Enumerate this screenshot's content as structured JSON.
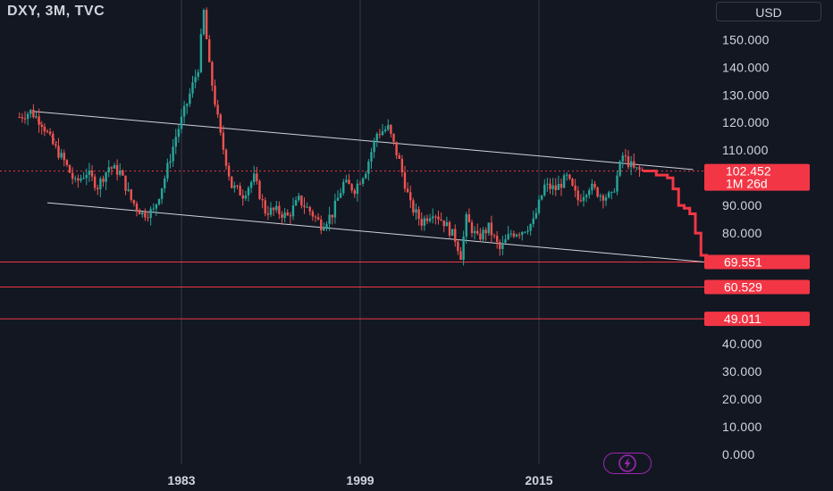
{
  "header": {
    "symbol": "DXY, 3M, TVC",
    "currency": "USD"
  },
  "colors": {
    "background": "#131722",
    "up": "#26a69a",
    "down": "#ef5350",
    "grid": "#363a45",
    "trendline": "#d1d4dc",
    "price_tag": "#f23645",
    "text": "#d1d4dc",
    "lightning": "#9c27b0"
  },
  "icons": {
    "speed_button": "lightning-bolt-icon"
  },
  "chart_data": {
    "type": "candlestick",
    "title": "DXY, 3M, TVC",
    "currency": "USD",
    "y_ticks": [
      "150.000",
      "140.000",
      "130.000",
      "120.000",
      "110.000",
      "90.000",
      "80.000",
      "40.000",
      "30.000",
      "20.000",
      "10.000",
      "0.000"
    ],
    "x_ticks": [
      "1983",
      "1999",
      "2015"
    ],
    "ylim": [
      0,
      162
    ],
    "xlim": [
      1968.2,
      2036
    ],
    "grid": true,
    "last_price": {
      "value": "102.452",
      "countdown": "1M 26d"
    },
    "horizontal_levels": [
      "69.551",
      "60.529",
      "49.011"
    ],
    "channel": {
      "upper": [
        [
          1969.8,
          124
        ],
        [
          2028.8,
          103
        ]
      ],
      "lower": [
        [
          1971.0,
          91
        ],
        [
          2030.0,
          69.5
        ]
      ]
    },
    "candle_anchors": [
      [
        1968.5,
        122
      ],
      [
        1969.5,
        124
      ],
      [
        1970.5,
        120
      ],
      [
        1971.5,
        112
      ],
      [
        1972.5,
        106
      ],
      [
        1973.5,
        98
      ],
      [
        1974.5,
        102
      ],
      [
        1975.5,
        97
      ],
      [
        1976.5,
        104
      ],
      [
        1977.5,
        102
      ],
      [
        1978.5,
        92
      ],
      [
        1979.5,
        87
      ],
      [
        1980.5,
        88
      ],
      [
        1981.5,
        100
      ],
      [
        1982.5,
        115
      ],
      [
        1983.5,
        127
      ],
      [
        1984.5,
        140
      ],
      [
        1985.0,
        160
      ],
      [
        1985.5,
        140
      ],
      [
        1986.5,
        115
      ],
      [
        1987.5,
        97
      ],
      [
        1988.5,
        94
      ],
      [
        1989.5,
        100
      ],
      [
        1990.5,
        88
      ],
      [
        1991.5,
        88
      ],
      [
        1992.5,
        86
      ],
      [
        1993.5,
        92
      ],
      [
        1994.5,
        88
      ],
      [
        1995.5,
        83
      ],
      [
        1996.5,
        87
      ],
      [
        1997.5,
        98
      ],
      [
        1998.5,
        96
      ],
      [
        1999.5,
        103
      ],
      [
        2000.5,
        116
      ],
      [
        2001.5,
        118
      ],
      [
        2002.5,
        106
      ],
      [
        2003.5,
        90
      ],
      [
        2004.5,
        84
      ],
      [
        2005.5,
        88
      ],
      [
        2006.5,
        84
      ],
      [
        2007.5,
        78
      ],
      [
        2008.0,
        72
      ],
      [
        2008.5,
        85
      ],
      [
        2009.5,
        78
      ],
      [
        2010.5,
        82
      ],
      [
        2011.5,
        74
      ],
      [
        2012.5,
        80
      ],
      [
        2013.5,
        81
      ],
      [
        2014.5,
        84
      ],
      [
        2015.5,
        97
      ],
      [
        2016.5,
        96
      ],
      [
        2017.5,
        100
      ],
      [
        2018.5,
        92
      ],
      [
        2019.5,
        97
      ],
      [
        2020.5,
        94
      ],
      [
        2021.5,
        93
      ],
      [
        2022.5,
        108
      ],
      [
        2023.5,
        103
      ],
      [
        2024.3,
        102.452
      ]
    ],
    "projection": [
      [
        2024.3,
        102.5
      ],
      [
        2025.5,
        101
      ],
      [
        2026.5,
        100
      ],
      [
        2027.0,
        96
      ],
      [
        2027.5,
        90
      ],
      [
        2028.0,
        89
      ],
      [
        2028.5,
        87
      ],
      [
        2029.0,
        80
      ],
      [
        2029.5,
        72
      ],
      [
        2030.0,
        69.551
      ]
    ]
  }
}
